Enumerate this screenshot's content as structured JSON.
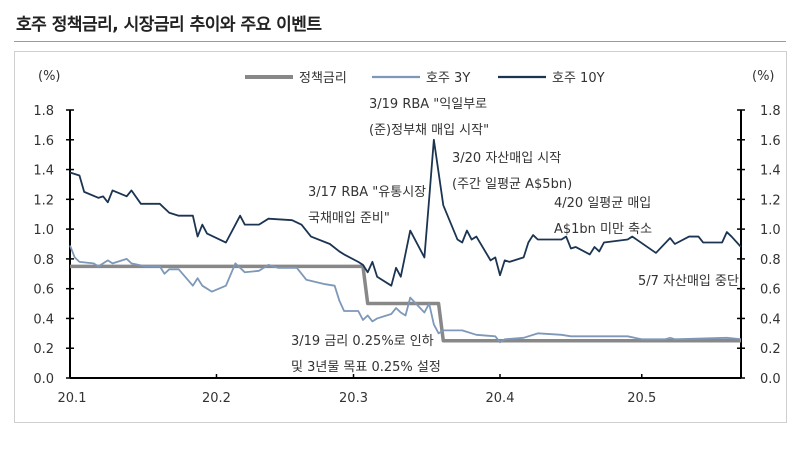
{
  "title": "호주 정책금리, 시장금리 추이와 주요 이벤트",
  "chart_data": {
    "type": "line",
    "title": "호주 정책금리, 시장금리 추이와 주요 이벤트",
    "ylabel_left": "(%)",
    "ylabel_right": "(%)",
    "ylim": [
      0,
      1.8
    ],
    "yticks": [
      "0.0",
      "0.2",
      "0.4",
      "0.6",
      "0.8",
      "1.0",
      "1.2",
      "1.4",
      "1.6",
      "1.8"
    ],
    "xticks": [
      {
        "label": "20.1",
        "date": "2020-01-01"
      },
      {
        "label": "20.2",
        "date": "2020-02-01"
      },
      {
        "label": "20.3",
        "date": "2020-03-01"
      },
      {
        "label": "20.4",
        "date": "2020-04-01"
      },
      {
        "label": "20.5",
        "date": "2020-05-01"
      }
    ],
    "xlim": [
      "2020-01-01",
      "2020-05-22"
    ],
    "grid": false,
    "legend": "top",
    "series": [
      {
        "name": "정책금리",
        "color": "#888888",
        "step": true,
        "points": [
          [
            "2020-01-01",
            0.75
          ],
          [
            "2020-03-03",
            0.75
          ],
          [
            "2020-03-04",
            0.5
          ],
          [
            "2020-03-19",
            0.5
          ],
          [
            "2020-03-20",
            0.25
          ],
          [
            "2020-05-22",
            0.25
          ]
        ]
      },
      {
        "name": "호주 3Y",
        "color": "#7d98b8",
        "points": [
          [
            "2020-01-01",
            0.89
          ],
          [
            "2020-01-02",
            0.81
          ],
          [
            "2020-01-03",
            0.78
          ],
          [
            "2020-01-06",
            0.77
          ],
          [
            "2020-01-07",
            0.75
          ],
          [
            "2020-01-09",
            0.79
          ],
          [
            "2020-01-10",
            0.77
          ],
          [
            "2020-01-13",
            0.8
          ],
          [
            "2020-01-14",
            0.77
          ],
          [
            "2020-01-17",
            0.75
          ],
          [
            "2020-01-20",
            0.75
          ],
          [
            "2020-01-21",
            0.7
          ],
          [
            "2020-01-22",
            0.73
          ],
          [
            "2020-01-24",
            0.73
          ],
          [
            "2020-01-27",
            0.62
          ],
          [
            "2020-01-28",
            0.67
          ],
          [
            "2020-01-29",
            0.62
          ],
          [
            "2020-01-31",
            0.58
          ],
          [
            "2020-02-03",
            0.62
          ],
          [
            "2020-02-05",
            0.77
          ],
          [
            "2020-02-07",
            0.71
          ],
          [
            "2020-02-10",
            0.72
          ],
          [
            "2020-02-12",
            0.76
          ],
          [
            "2020-02-14",
            0.74
          ],
          [
            "2020-02-18",
            0.74
          ],
          [
            "2020-02-20",
            0.66
          ],
          [
            "2020-02-24",
            0.63
          ],
          [
            "2020-02-26",
            0.62
          ],
          [
            "2020-02-27",
            0.52
          ],
          [
            "2020-02-28",
            0.45
          ],
          [
            "2020-03-02",
            0.45
          ],
          [
            "2020-03-03",
            0.39
          ],
          [
            "2020-03-04",
            0.42
          ],
          [
            "2020-03-05",
            0.38
          ],
          [
            "2020-03-06",
            0.4
          ],
          [
            "2020-03-09",
            0.43
          ],
          [
            "2020-03-10",
            0.47
          ],
          [
            "2020-03-11",
            0.44
          ],
          [
            "2020-03-12",
            0.42
          ],
          [
            "2020-03-13",
            0.54
          ],
          [
            "2020-03-16",
            0.44
          ],
          [
            "2020-03-17",
            0.5
          ],
          [
            "2020-03-18",
            0.36
          ],
          [
            "2020-03-19",
            0.3
          ],
          [
            "2020-03-20",
            0.32
          ],
          [
            "2020-03-24",
            0.32
          ],
          [
            "2020-03-27",
            0.29
          ],
          [
            "2020-03-31",
            0.28
          ],
          [
            "2020-04-01",
            0.24
          ],
          [
            "2020-04-02",
            0.26
          ],
          [
            "2020-04-06",
            0.27
          ],
          [
            "2020-04-09",
            0.3
          ],
          [
            "2020-04-14",
            0.29
          ],
          [
            "2020-04-16",
            0.28
          ],
          [
            "2020-04-21",
            0.28
          ],
          [
            "2020-04-28",
            0.28
          ],
          [
            "2020-05-01",
            0.26
          ],
          [
            "2020-05-06",
            0.26
          ],
          [
            "2020-05-07",
            0.27
          ],
          [
            "2020-05-08",
            0.26
          ],
          [
            "2020-05-19",
            0.27
          ],
          [
            "2020-05-22",
            0.26
          ]
        ]
      },
      {
        "name": "호주 10Y",
        "color": "#1b3452",
        "points": [
          [
            "2020-01-01",
            1.38
          ],
          [
            "2020-01-03",
            1.36
          ],
          [
            "2020-01-04",
            1.25
          ],
          [
            "2020-01-07",
            1.21
          ],
          [
            "2020-01-08",
            1.22
          ],
          [
            "2020-01-09",
            1.18
          ],
          [
            "2020-01-10",
            1.26
          ],
          [
            "2020-01-13",
            1.22
          ],
          [
            "2020-01-14",
            1.26
          ],
          [
            "2020-01-16",
            1.17
          ],
          [
            "2020-01-20",
            1.17
          ],
          [
            "2020-01-22",
            1.11
          ],
          [
            "2020-01-24",
            1.09
          ],
          [
            "2020-01-27",
            1.09
          ],
          [
            "2020-01-28",
            0.95
          ],
          [
            "2020-01-29",
            1.03
          ],
          [
            "2020-01-30",
            0.97
          ],
          [
            "2020-02-03",
            0.91
          ],
          [
            "2020-02-05",
            1.03
          ],
          [
            "2020-02-06",
            1.09
          ],
          [
            "2020-02-07",
            1.03
          ],
          [
            "2020-02-10",
            1.03
          ],
          [
            "2020-02-12",
            1.07
          ],
          [
            "2020-02-17",
            1.06
          ],
          [
            "2020-02-19",
            1.03
          ],
          [
            "2020-02-21",
            0.95
          ],
          [
            "2020-02-25",
            0.9
          ],
          [
            "2020-02-27",
            0.85
          ],
          [
            "2020-02-28",
            0.83
          ],
          [
            "2020-03-02",
            0.78
          ],
          [
            "2020-03-03",
            0.76
          ],
          [
            "2020-03-04",
            0.71
          ],
          [
            "2020-03-05",
            0.78
          ],
          [
            "2020-03-06",
            0.68
          ],
          [
            "2020-03-09",
            0.62
          ],
          [
            "2020-03-10",
            0.74
          ],
          [
            "2020-03-11",
            0.68
          ],
          [
            "2020-03-13",
            0.99
          ],
          [
            "2020-03-16",
            0.81
          ],
          [
            "2020-03-17",
            1.2
          ],
          [
            "2020-03-18",
            1.6
          ],
          [
            "2020-03-20",
            1.16
          ],
          [
            "2020-03-23",
            0.93
          ],
          [
            "2020-03-24",
            0.91
          ],
          [
            "2020-03-25",
            0.99
          ],
          [
            "2020-03-26",
            0.93
          ],
          [
            "2020-03-27",
            0.95
          ],
          [
            "2020-03-30",
            0.79
          ],
          [
            "2020-03-31",
            0.81
          ],
          [
            "2020-04-01",
            0.69
          ],
          [
            "2020-04-02",
            0.79
          ],
          [
            "2020-04-03",
            0.78
          ],
          [
            "2020-04-06",
            0.81
          ],
          [
            "2020-04-07",
            0.91
          ],
          [
            "2020-04-08",
            0.96
          ],
          [
            "2020-04-09",
            0.93
          ],
          [
            "2020-04-14",
            0.93
          ],
          [
            "2020-04-15",
            0.95
          ],
          [
            "2020-04-16",
            0.87
          ],
          [
            "2020-04-17",
            0.88
          ],
          [
            "2020-04-20",
            0.83
          ],
          [
            "2020-04-21",
            0.88
          ],
          [
            "2020-04-22",
            0.85
          ],
          [
            "2020-04-23",
            0.91
          ],
          [
            "2020-04-28",
            0.93
          ],
          [
            "2020-04-29",
            0.95
          ],
          [
            "2020-05-04",
            0.84
          ],
          [
            "2020-05-07",
            0.94
          ],
          [
            "2020-05-08",
            0.9
          ],
          [
            "2020-05-11",
            0.95
          ],
          [
            "2020-05-13",
            0.95
          ],
          [
            "2020-05-14",
            0.91
          ],
          [
            "2020-05-18",
            0.91
          ],
          [
            "2020-05-19",
            0.98
          ],
          [
            "2020-05-20",
            0.95
          ],
          [
            "2020-05-22",
            0.88
          ]
        ]
      }
    ],
    "annotations": [
      {
        "lines": [
          "3/17 RBA \"유통시장",
          "국채매입 준비\""
        ]
      },
      {
        "lines": [
          "3/19 RBA \"익일부로",
          "(준)정부채 매입 시작\""
        ]
      },
      {
        "lines": [
          "3/20 자산매입 시작",
          "(주간 일평균 A$5bn)"
        ]
      },
      {
        "lines": [
          "4/20 일평균 매입",
          "A$1bn 미만 축소"
        ]
      },
      {
        "lines": [
          "5/7 자산매입 중단"
        ]
      },
      {
        "lines": [
          "3/19 금리 0.25%로 인하",
          "및 3년물 목표 0.25% 설정"
        ]
      }
    ]
  }
}
